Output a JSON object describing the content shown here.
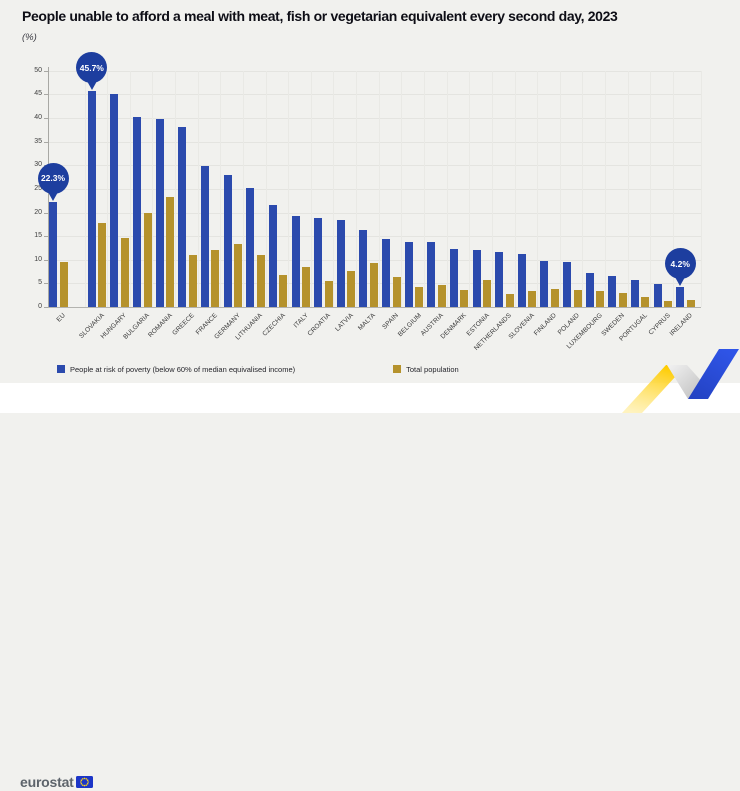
{
  "header": {
    "title": "People unable to afford a meal with meat, fish or vegetarian equivalent every second day, 2023",
    "unit_label": "(%)"
  },
  "chart_data": {
    "type": "bar",
    "title": "People unable to afford a meal with meat, fish or vegetarian equivalent every second day, 2023",
    "unit": "%",
    "ylim": [
      0,
      50
    ],
    "ytick_step": 5,
    "grid": true,
    "legend_position": "bottom",
    "categories": [
      "EU",
      "SLOVAKIA",
      "HUNGARY",
      "BULGARIA",
      "ROMANIA",
      "GREECE",
      "FRANCE",
      "GERMANY",
      "LITHUANIA",
      "CZECHIA",
      "ITALY",
      "CROATIA",
      "LATVIA",
      "MALTA",
      "SPAIN",
      "BELGIUM",
      "AUSTRIA",
      "DENMARK",
      "ESTONIA",
      "NETHERLANDS",
      "SLOVENIA",
      "FINLAND",
      "POLAND",
      "LUXEMBOURG",
      "SWEDEN",
      "PORTUGAL",
      "CYPRUS",
      "IRELAND"
    ],
    "series": [
      {
        "name": "People at risk of poverty (below 60% of median equivalised income)",
        "color": "#2b4aad",
        "values": [
          22.3,
          45.7,
          45.0,
          40.2,
          39.9,
          38.0,
          29.8,
          27.9,
          25.1,
          21.6,
          19.3,
          18.9,
          18.5,
          16.4,
          14.4,
          13.8,
          13.7,
          12.3,
          12.1,
          11.6,
          11.3,
          9.7,
          9.6,
          7.2,
          6.5,
          5.8,
          4.9,
          4.2
        ]
      },
      {
        "name": "Total population",
        "color": "#b5922c",
        "values": [
          9.5,
          17.8,
          14.6,
          19.8,
          23.2,
          11.0,
          12.1,
          13.3,
          11.0,
          6.7,
          8.4,
          5.5,
          7.6,
          9.3,
          6.4,
          4.3,
          4.7,
          3.7,
          5.8,
          2.8,
          3.4,
          3.9,
          3.6,
          3.3,
          3.0,
          2.2,
          1.2,
          1.5
        ]
      }
    ],
    "callouts": [
      {
        "category": "EU",
        "label": "22.3%"
      },
      {
        "category": "SLOVAKIA",
        "label": "45.7%"
      },
      {
        "category": "IRELAND",
        "label": "4.2%"
      }
    ],
    "callout_color": "#1d3e9f"
  },
  "footer": {
    "brand": "eurostat"
  }
}
